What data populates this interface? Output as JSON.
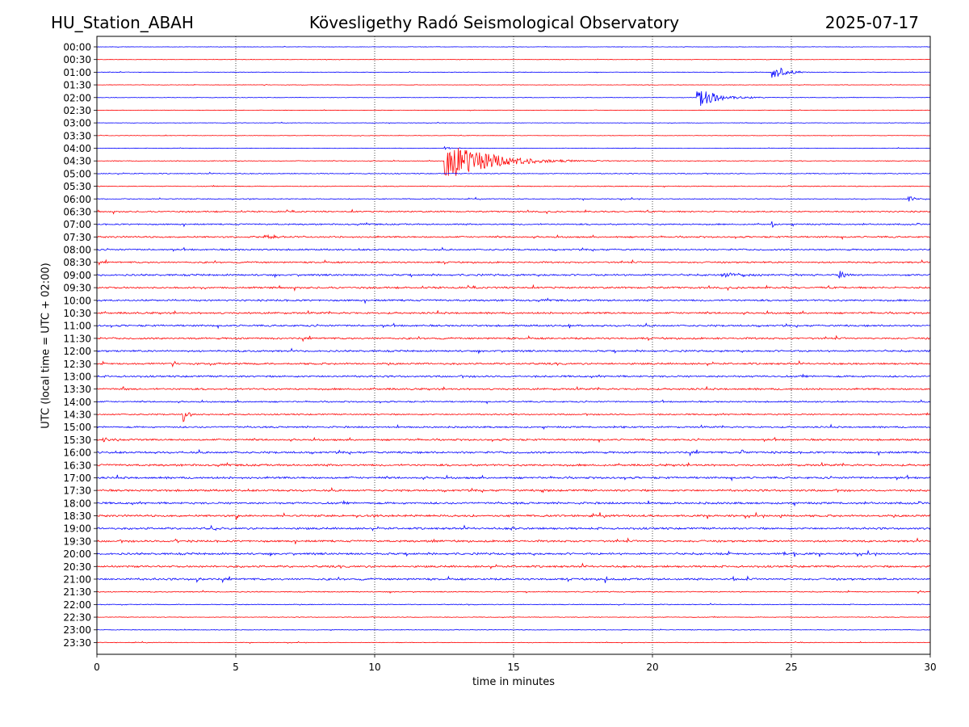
{
  "header": {
    "station": "HU_Station_ABAH",
    "title": "Kövesligethy Radó Seismological Observatory",
    "date": "2025-07-17"
  },
  "colors": {
    "even_trace": "#0000ff",
    "odd_trace": "#ff0000",
    "grid": "#000000"
  },
  "chart_data": {
    "type": "line",
    "xlabel": "time in minutes",
    "ylabel": "UTC (local time = UTC + 02:00)",
    "xlim": [
      0,
      30
    ],
    "xticks": [
      0,
      5,
      10,
      15,
      20,
      25,
      30
    ],
    "grid": "vertical dotted at 5-minute intervals",
    "rows": [
      {
        "label": "00:00",
        "color": "blue",
        "noise": 0.2,
        "events": []
      },
      {
        "label": "00:30",
        "color": "red",
        "noise": 0.2,
        "events": []
      },
      {
        "label": "01:00",
        "color": "blue",
        "noise": 0.25,
        "events": [
          {
            "t": 24.3,
            "amp": 10,
            "dur": 1.3
          }
        ]
      },
      {
        "label": "01:30",
        "color": "red",
        "noise": 0.22,
        "events": []
      },
      {
        "label": "02:00",
        "color": "blue",
        "noise": 0.25,
        "events": [
          {
            "t": 21.6,
            "amp": 13,
            "dur": 2.0
          }
        ]
      },
      {
        "label": "02:30",
        "color": "red",
        "noise": 0.22,
        "events": []
      },
      {
        "label": "03:00",
        "color": "blue",
        "noise": 0.22,
        "events": []
      },
      {
        "label": "03:30",
        "color": "red",
        "noise": 0.22,
        "events": []
      },
      {
        "label": "04:00",
        "color": "blue",
        "noise": 0.25,
        "events": [
          {
            "t": 12.5,
            "amp": 6,
            "dur": 0.3
          }
        ]
      },
      {
        "label": "04:30",
        "color": "red",
        "noise": 0.35,
        "events": [
          {
            "t": 12.5,
            "amp": 28,
            "dur": 4.0
          }
        ]
      },
      {
        "label": "05:00",
        "color": "blue",
        "noise": 0.45,
        "events": []
      },
      {
        "label": "05:30",
        "color": "red",
        "noise": 0.4,
        "events": []
      },
      {
        "label": "06:00",
        "color": "blue",
        "noise": 0.45,
        "events": [
          {
            "t": 29.2,
            "amp": 4,
            "dur": 0.8
          }
        ]
      },
      {
        "label": "06:30",
        "color": "red",
        "noise": 0.7,
        "events": []
      },
      {
        "label": "07:00",
        "color": "blue",
        "noise": 0.7,
        "events": [
          {
            "t": 24.3,
            "amp": 5,
            "dur": 0.2
          }
        ]
      },
      {
        "label": "07:30",
        "color": "red",
        "noise": 0.8,
        "events": [
          {
            "t": 6.0,
            "amp": 4,
            "dur": 1.2
          }
        ]
      },
      {
        "label": "08:00",
        "color": "blue",
        "noise": 0.8,
        "events": []
      },
      {
        "label": "08:30",
        "color": "red",
        "noise": 0.8,
        "events": []
      },
      {
        "label": "09:00",
        "color": "blue",
        "noise": 0.9,
        "events": [
          {
            "t": 22.5,
            "amp": 3,
            "dur": 3.0
          },
          {
            "t": 26.7,
            "amp": 10,
            "dur": 0.5
          }
        ]
      },
      {
        "label": "09:30",
        "color": "red",
        "noise": 0.9,
        "events": []
      },
      {
        "label": "10:00",
        "color": "blue",
        "noise": 0.9,
        "events": []
      },
      {
        "label": "10:30",
        "color": "red",
        "noise": 0.9,
        "events": []
      },
      {
        "label": "11:00",
        "color": "blue",
        "noise": 0.9,
        "events": [
          {
            "t": 17.0,
            "amp": 3,
            "dur": 0.3
          }
        ]
      },
      {
        "label": "11:30",
        "color": "red",
        "noise": 0.9,
        "events": []
      },
      {
        "label": "12:00",
        "color": "blue",
        "noise": 0.9,
        "events": []
      },
      {
        "label": "12:30",
        "color": "red",
        "noise": 0.9,
        "events": []
      },
      {
        "label": "13:00",
        "color": "blue",
        "noise": 0.9,
        "events": []
      },
      {
        "label": "13:30",
        "color": "red",
        "noise": 0.9,
        "events": [
          {
            "t": 0.9,
            "amp": 4,
            "dur": 0.3
          }
        ]
      },
      {
        "label": "14:00",
        "color": "blue",
        "noise": 0.7,
        "events": []
      },
      {
        "label": "14:30",
        "color": "red",
        "noise": 0.7,
        "events": [
          {
            "t": 3.1,
            "amp": 11,
            "dur": 0.5
          }
        ]
      },
      {
        "label": "15:00",
        "color": "blue",
        "noise": 0.8,
        "events": [
          {
            "t": 18.9,
            "amp": 3,
            "dur": 0.3
          }
        ]
      },
      {
        "label": "15:30",
        "color": "red",
        "noise": 0.9,
        "events": [
          {
            "t": 0.2,
            "amp": 3,
            "dur": 0.6
          }
        ]
      },
      {
        "label": "16:00",
        "color": "blue",
        "noise": 1.0,
        "events": [
          {
            "t": 23.2,
            "amp": 4,
            "dur": 0.4
          }
        ]
      },
      {
        "label": "16:30",
        "color": "red",
        "noise": 1.0,
        "events": []
      },
      {
        "label": "17:00",
        "color": "blue",
        "noise": 1.0,
        "events": []
      },
      {
        "label": "17:30",
        "color": "red",
        "noise": 1.0,
        "events": [
          {
            "t": 16.0,
            "amp": 4,
            "dur": 0.2
          }
        ]
      },
      {
        "label": "18:00",
        "color": "blue",
        "noise": 1.0,
        "events": []
      },
      {
        "label": "18:30",
        "color": "red",
        "noise": 1.0,
        "events": [
          {
            "t": 5.0,
            "amp": 5,
            "dur": 0.3
          },
          {
            "t": 24.6,
            "amp": 4,
            "dur": 0.2
          }
        ]
      },
      {
        "label": "19:00",
        "color": "blue",
        "noise": 1.0,
        "events": [
          {
            "t": 4.1,
            "amp": 6,
            "dur": 0.3
          },
          {
            "t": 14.9,
            "amp": 4,
            "dur": 0.3
          }
        ]
      },
      {
        "label": "19:30",
        "color": "red",
        "noise": 1.0,
        "events": [
          {
            "t": 2.8,
            "amp": 5,
            "dur": 0.2
          },
          {
            "t": 12.1,
            "amp": 4,
            "dur": 0.2
          }
        ]
      },
      {
        "label": "20:00",
        "color": "blue",
        "noise": 1.0,
        "events": [
          {
            "t": 24.7,
            "amp": 5,
            "dur": 0.2
          }
        ]
      },
      {
        "label": "20:30",
        "color": "red",
        "noise": 1.0,
        "events": [
          {
            "t": 3.9,
            "amp": 4,
            "dur": 0.2
          }
        ]
      },
      {
        "label": "21:00",
        "color": "blue",
        "noise": 1.0,
        "events": [
          {
            "t": 3.6,
            "amp": 6,
            "dur": 0.2
          },
          {
            "t": 18.3,
            "amp": 5,
            "dur": 0.2
          },
          {
            "t": 22.9,
            "amp": 5,
            "dur": 0.2
          }
        ]
      },
      {
        "label": "21:30",
        "color": "red",
        "noise": 0.5,
        "events": []
      },
      {
        "label": "22:00",
        "color": "blue",
        "noise": 0.4,
        "events": []
      },
      {
        "label": "22:30",
        "color": "red",
        "noise": 0.35,
        "events": []
      },
      {
        "label": "23:00",
        "color": "blue",
        "noise": 0.3,
        "events": []
      },
      {
        "label": "23:30",
        "color": "red",
        "noise": 0.3,
        "events": []
      }
    ]
  }
}
